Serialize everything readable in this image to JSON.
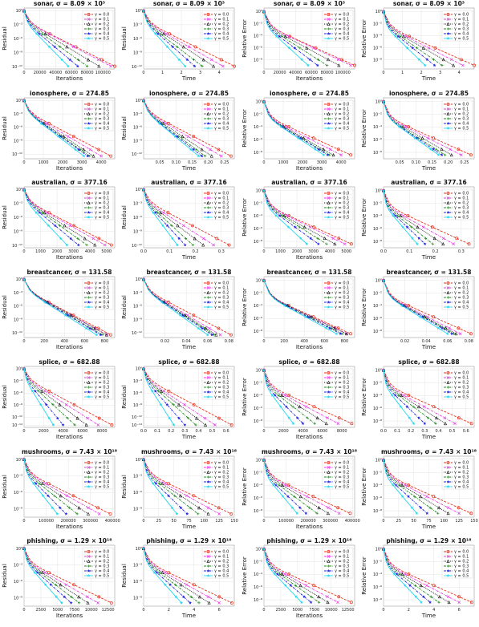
{
  "figure": {
    "legend_labels": [
      "γ = 0.0",
      "γ = 0.1",
      "γ = 0.2",
      "γ = 0.3",
      "γ = 0.4",
      "γ = 0.5"
    ],
    "series_colors": [
      "#e8311c",
      "#e83ae8",
      "#111111",
      "#1f8a1f",
      "#2020e0",
      "#22d8ee"
    ],
    "series_markers": [
      "circle",
      "x",
      "triangle",
      "plus",
      "star",
      "star"
    ],
    "series_dash": [
      "dash",
      "dashdot",
      "dot",
      "dashdot",
      "dashdot",
      "solid"
    ],
    "ylabel_residual": "Residual",
    "ylabel_relerr": "Relative Error",
    "xlabel_iterations": "Iterations",
    "xlabel_time": "Time",
    "legend_position": "top-right",
    "grid": true,
    "yscale": "log"
  },
  "rows": [
    {
      "dataset": "sonar",
      "sigma": "8.09 × 10³",
      "iter_ticks": [
        "0",
        "20000",
        "40000",
        "60000",
        "80000",
        "100000"
      ],
      "iter_max": 115000,
      "time_ticks": [
        "0",
        "1",
        "2",
        "3",
        "4"
      ],
      "time_max": 4.8,
      "yticks_res": [
        "10⁰",
        "10⁻³",
        "10⁻⁶",
        "10⁻⁹",
        "10⁻¹²"
      ],
      "ymin_res": -12.5,
      "yticks_rel": [
        "10⁰",
        "10⁻²",
        "10⁻⁴",
        "10⁻⁶",
        "10⁻⁸"
      ],
      "ymin_rel": -9.5,
      "iter_ends": [
        115000,
        110000,
        95000,
        80000,
        68000,
        56000
      ],
      "time_ends": [
        4.8,
        4.2,
        3.7,
        3.1,
        2.7,
        2.2
      ]
    },
    {
      "dataset": "ionosphere",
      "sigma": "274.85",
      "iter_ticks": [
        "0",
        "1000",
        "2000",
        "3000",
        "4000"
      ],
      "iter_max": 4700,
      "time_ticks": [
        "0.05",
        "0.10",
        "0.15",
        "0.20",
        "0.25"
      ],
      "time_max": 0.28,
      "yticks_res": [
        "10⁰",
        "10⁻³",
        "10⁻⁶",
        "10⁻⁹",
        "10⁻¹²"
      ],
      "ymin_res": -13,
      "yticks_rel": [
        "10⁰",
        "10⁻²",
        "10⁻⁴",
        "10⁻⁶",
        "10⁻⁸"
      ],
      "ymin_rel": -9,
      "iter_ends": [
        4500,
        4000,
        3600,
        3400,
        3300,
        3100
      ],
      "time_ends": [
        0.27,
        0.24,
        0.21,
        0.19,
        0.18,
        0.17
      ]
    },
    {
      "dataset": "australian",
      "sigma": "377.16",
      "iter_ticks": [
        "0",
        "1000",
        "2000",
        "3000",
        "4000",
        "5000"
      ],
      "iter_max": 5500,
      "time_ticks": [
        "0.0",
        "0.1",
        "0.2",
        "0.3"
      ],
      "time_max": 0.35,
      "yticks_res": [
        "10⁰",
        "10⁻³",
        "10⁻⁶",
        "10⁻⁹",
        "10⁻¹²"
      ],
      "ymin_res": -12.5,
      "yticks_rel": [
        "10⁰",
        "10⁻²",
        "10⁻⁴",
        "10⁻⁶",
        "10⁻⁸"
      ],
      "ymin_rel": -9,
      "iter_ends": [
        5300,
        4900,
        4300,
        3800,
        3300,
        2600
      ],
      "time_ends": [
        0.33,
        0.27,
        0.23,
        0.19,
        0.16,
        0.13
      ]
    },
    {
      "dataset": "breastcancer",
      "sigma": "131.58",
      "iter_ticks": [
        "0",
        "200",
        "400",
        "600",
        "800"
      ],
      "iter_max": 900,
      "time_ticks": [
        "0.02",
        "0.04",
        "0.06",
        "0.08"
      ],
      "time_max": 0.085,
      "yticks_res": [
        "10⁰",
        "10⁻³",
        "10⁻⁶",
        "10⁻⁹",
        "10⁻¹²"
      ],
      "ymin_res": -13,
      "yticks_rel": [
        "10⁰",
        "10⁻²",
        "10⁻⁴",
        "10⁻⁶",
        "10⁻⁸"
      ],
      "ymin_rel": -9,
      "iter_ends": [
        860,
        820,
        820,
        780,
        760,
        720
      ],
      "time_ends": [
        0.082,
        0.072,
        0.068,
        0.066,
        0.064,
        0.06
      ]
    },
    {
      "dataset": "splice",
      "sigma": "682.88",
      "iter_ticks": [
        "0",
        "2000",
        "4000",
        "6000",
        "8000"
      ],
      "iter_max": 9300,
      "time_ticks": [
        "0.0",
        "0.1",
        "0.2",
        "0.3",
        "0.4",
        "0.5",
        "0.6"
      ],
      "time_max": 0.66,
      "yticks_res": [
        "10⁰",
        "10⁻³",
        "10⁻⁶",
        "10⁻⁹",
        "10⁻¹²",
        "10⁻¹⁴"
      ],
      "ymin_res": -14.5,
      "yticks_rel": [
        "10⁰",
        "10⁻²",
        "10⁻⁴",
        "10⁻⁶",
        "10⁻⁸"
      ],
      "ymin_rel": -9,
      "iter_ends": [
        9000,
        7600,
        6400,
        5200,
        4000,
        3000
      ],
      "time_ends": [
        0.64,
        0.52,
        0.45,
        0.38,
        0.3,
        0.22
      ]
    },
    {
      "dataset": "mushrooms",
      "sigma": "7.43 × 10¹⁸",
      "iter_ticks": [
        "0",
        "100000",
        "200000",
        "300000",
        "400000"
      ],
      "iter_max": 410000,
      "time_ticks": [
        "0",
        "25",
        "50",
        "75",
        "100",
        "125",
        "150"
      ],
      "time_max": 150,
      "yticks_res": [
        "10⁰",
        "10⁻³",
        "10⁻⁶",
        "10⁻⁹"
      ],
      "ymin_res": -10.5,
      "yticks_rel": [
        "10⁰",
        "10⁻²",
        "10⁻⁴",
        "10⁻⁶",
        "10⁻⁸"
      ],
      "ymin_rel": -9,
      "iter_ends": [
        390000,
        340000,
        290000,
        240000,
        190000,
        150000
      ],
      "time_ends": [
        145,
        125,
        107,
        90,
        72,
        55
      ]
    },
    {
      "dataset": "phishing",
      "sigma": "1.29 × 10¹⁸",
      "iter_ticks": [
        "0",
        "2500",
        "5000",
        "7500",
        "10000",
        "12500"
      ],
      "iter_max": 13500,
      "time_ticks": [
        "0",
        "2",
        "4",
        "6"
      ],
      "time_max": 7.2,
      "yticks_res": [
        "10⁰",
        "10⁻³",
        "10⁻⁶",
        "10⁻⁹"
      ],
      "ymin_res": -10.5,
      "yticks_rel": [
        "10⁰",
        "10⁻²",
        "10⁻⁴",
        "10⁻⁶",
        "10⁻⁸"
      ],
      "ymin_rel": -9,
      "iter_ends": [
        13000,
        11000,
        9500,
        8200,
        7000,
        5600
      ],
      "time_ends": [
        7.0,
        6.0,
        5.2,
        4.4,
        3.7,
        3.0
      ]
    }
  ],
  "columns": [
    {
      "ylabel": "Residual",
      "xlabel": "Iterations",
      "x": "iter",
      "y": "res"
    },
    {
      "ylabel": "Residual",
      "xlabel": "Time",
      "x": "time",
      "y": "res"
    },
    {
      "ylabel": "Relative Error",
      "xlabel": "Iterations",
      "x": "iter",
      "y": "rel"
    },
    {
      "ylabel": "Relative Error",
      "xlabel": "Time",
      "x": "time",
      "y": "rel"
    }
  ],
  "chart_data": {
    "type": "line",
    "yscale": "log",
    "grid": true,
    "series_names": [
      "γ = 0.0",
      "γ = 0.1",
      "γ = 0.2",
      "γ = 0.3",
      "γ = 0.4",
      "γ = 0.5"
    ],
    "panels_note": "7 datasets × 4 panels (Residual vs Iterations, Residual vs Time, Relative Error vs Iterations, Relative Error vs Time); each series decays roughly linearly on the log scale from 10⁰ to the final level at its end x-value"
  }
}
